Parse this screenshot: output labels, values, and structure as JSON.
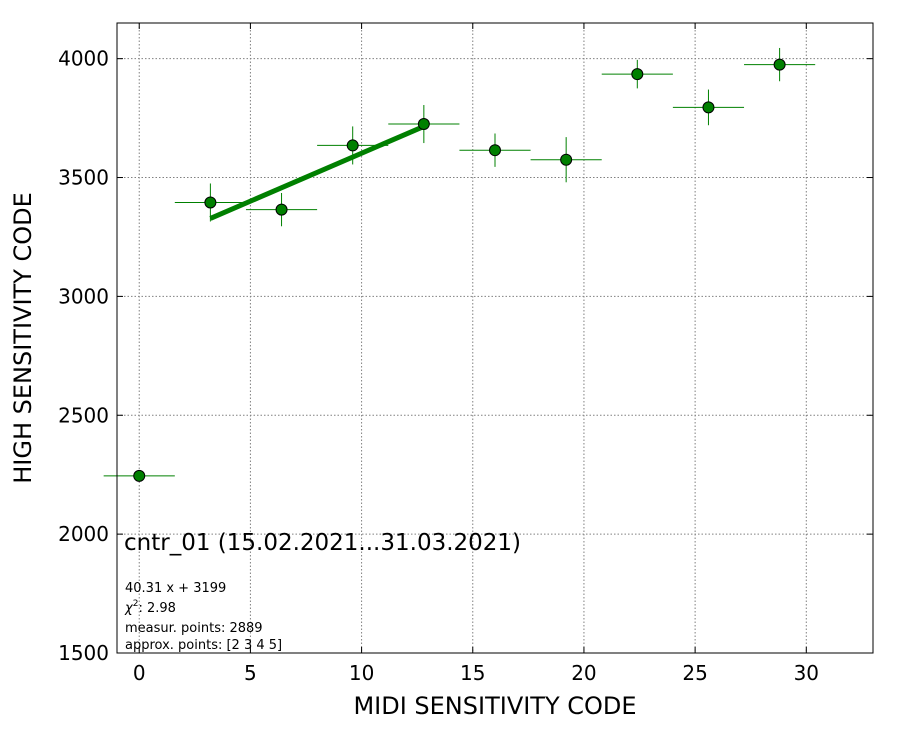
{
  "chart_data": {
    "type": "scatter",
    "title": "cntr_01 (15.02.2021...31.03.2021)",
    "xlabel": "MIDI SENSITIVITY CODE",
    "ylabel": "HIGH SENSITIVITY CODE",
    "xlim": [
      -1,
      33
    ],
    "ylim": [
      1500,
      4150
    ],
    "xticks": [
      0,
      5,
      10,
      15,
      20,
      25,
      30
    ],
    "yticks": [
      1500,
      2000,
      2500,
      3000,
      3500,
      4000
    ],
    "grid": true,
    "point_color": "#008000",
    "fit_color": "#008000",
    "series": [
      {
        "points": [
          {
            "x": 0.0,
            "y": 2245,
            "xerr": 1.6,
            "yerr": 0
          },
          {
            "x": 3.2,
            "y": 3395,
            "xerr": 1.6,
            "yerr": 80
          },
          {
            "x": 6.4,
            "y": 3365,
            "xerr": 1.6,
            "yerr": 70
          },
          {
            "x": 9.6,
            "y": 3635,
            "xerr": 1.6,
            "yerr": 80
          },
          {
            "x": 12.8,
            "y": 3725,
            "xerr": 1.6,
            "yerr": 80
          },
          {
            "x": 16.0,
            "y": 3615,
            "xerr": 1.6,
            "yerr": 70
          },
          {
            "x": 19.2,
            "y": 3575,
            "xerr": 1.6,
            "yerr": 95
          },
          {
            "x": 22.4,
            "y": 3935,
            "xerr": 1.6,
            "yerr": 60
          },
          {
            "x": 25.6,
            "y": 3795,
            "xerr": 1.6,
            "yerr": 75
          },
          {
            "x": 28.8,
            "y": 3975,
            "xerr": 1.6,
            "yerr": 70
          }
        ]
      }
    ],
    "fit": {
      "slope": 40.31,
      "intercept": 3199,
      "x_range": [
        3.2,
        12.8
      ]
    },
    "annotations": {
      "equation": "40.31 x + 3199",
      "chi2_symbol": "χ",
      "chi2_sup": "2",
      "chi2_value": ": 2.98",
      "measur_points": "measur. points: 2889",
      "approx_points": "approx. points: [2 3 4 5]"
    }
  }
}
